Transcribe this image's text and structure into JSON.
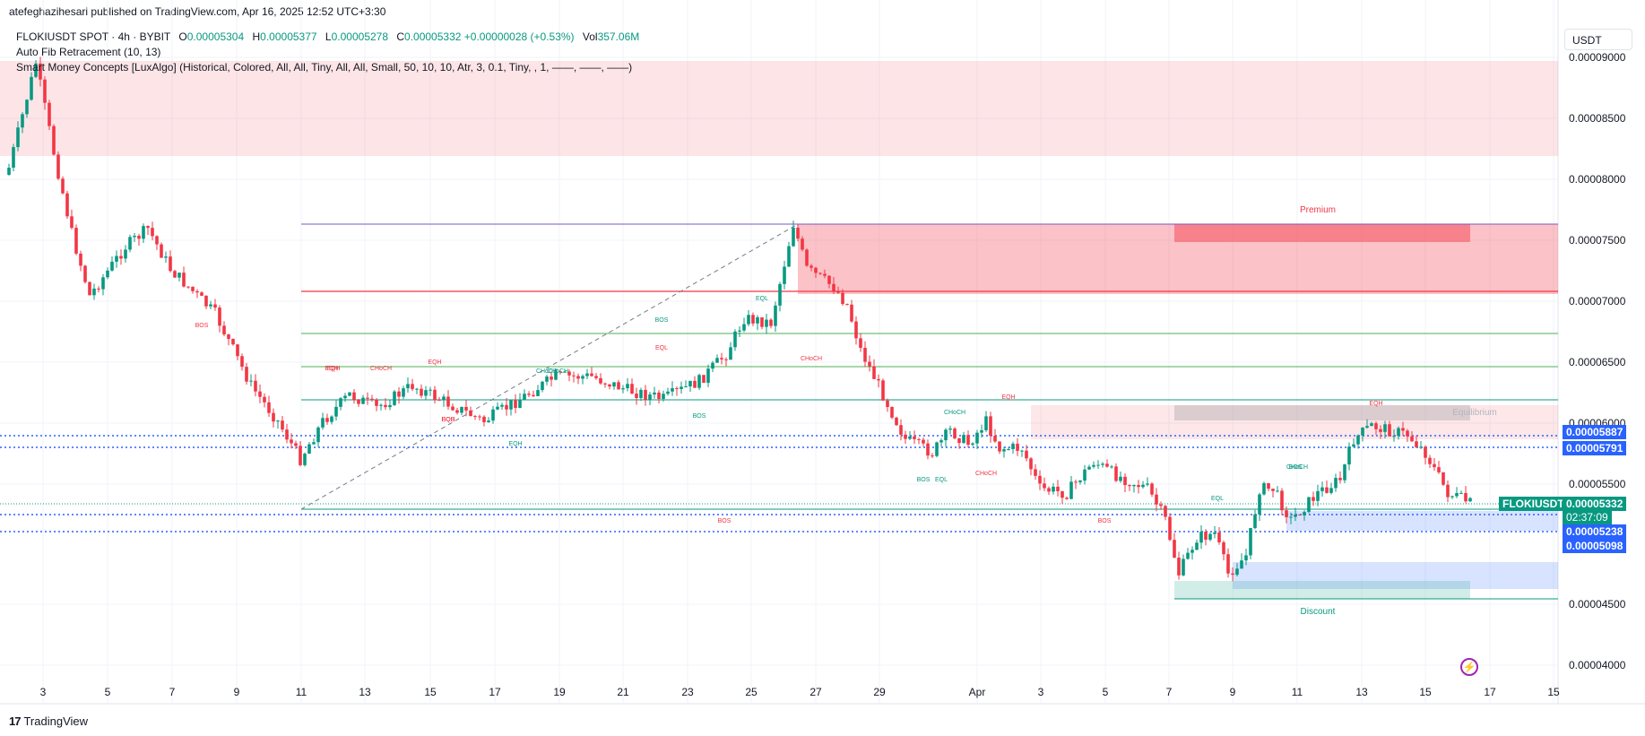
{
  "header": {
    "published": "atefeghazihesari published on TradingView.com, Apr 16, 2025 12:52 UTC+3:30",
    "symbol": "FLOKIUSDT SPOT · 4h · BYBIT",
    "o_label": "O",
    "o_value": "0.00005304",
    "h_label": "H",
    "h_value": "0.00005377",
    "l_label": "L",
    "l_value": "0.00005278",
    "c_label": "C",
    "c_value": "0.00005332",
    "change": "+0.00000028 (+0.53%)",
    "vol_label": "Vol",
    "vol_value": "357.06M",
    "indicator1": "Auto Fib Retracement (10, 13)",
    "indicator2": "Smart Money Concepts [LuxAlgo] (Historical, Colored, All, All, Tiny, All, All, Small, 50, 10, 10, Atr, 3, 0.1, Tiny, , 1, ——, ——, ——)"
  },
  "currency": "USDT",
  "price_axis": [
    "0.00009000",
    "0.00008500",
    "0.00008000",
    "0.00007500",
    "0.00007000",
    "0.00006500",
    "0.00006000",
    "0.00005500",
    "0.00004500",
    "0.00004000"
  ],
  "time_axis": [
    "3",
    "5",
    "7",
    "9",
    "11",
    "13",
    "15",
    "17",
    "19",
    "21",
    "23",
    "25",
    "27",
    "29",
    "Apr",
    "3",
    "5",
    "7",
    "9",
    "11",
    "13",
    "15",
    "17",
    "15"
  ],
  "price_tags": {
    "t1": "0.00005887",
    "t2": "0.00005791",
    "symbol": "FLOKIUSDT",
    "last": "0.00005332",
    "countdown": "02:37:09",
    "t3": "0.00005238",
    "t4": "0.00005098"
  },
  "zone_labels": {
    "premium": "Premium",
    "equilibrium": "Equilibrium",
    "discount": "Discount"
  },
  "smc_labels": [
    "EQH",
    "CHoCH",
    "BOS",
    "EQL",
    "CHoCH",
    "BOS",
    "EQH",
    "EQH",
    "EQH",
    "BOS",
    "EQL",
    "CHoCH",
    "BOS",
    "EQH",
    "EQL",
    "BOS",
    "CHoCH",
    "EQH",
    "CHoCH",
    "EQL",
    "CHoCH",
    "BOS",
    "CHoCH",
    "BOS",
    "EQH",
    "BOS"
  ],
  "footer": {
    "brand": "TradingView",
    "logo": "17"
  },
  "colors": {
    "up": "#089981",
    "down": "#f23645",
    "blue": "#2962ff",
    "bg": "#ffffff"
  }
}
